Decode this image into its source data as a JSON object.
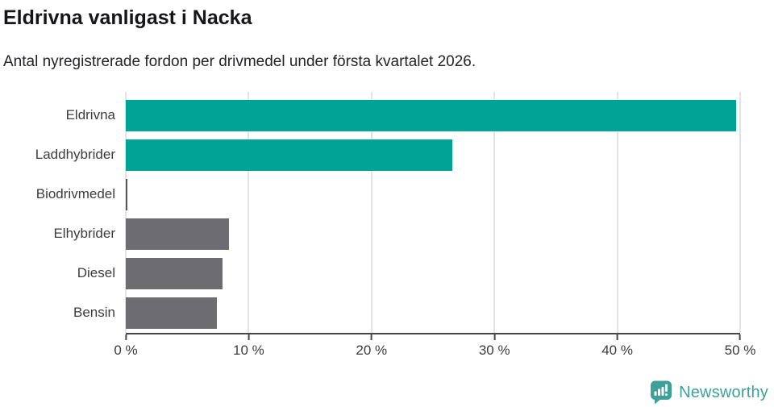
{
  "header": {
    "title": "Eldrivna vanligast i Nacka",
    "subtitle": "Antal nyregistrerade fordon per drivmedel under första kvartalet 2026."
  },
  "chart_data": {
    "type": "bar",
    "orientation": "horizontal",
    "title": "Eldrivna vanligast i Nacka",
    "subtitle": "Antal nyregistrerade fordon per drivmedel under första kvartalet 2026.",
    "categories": [
      "Eldrivna",
      "Laddhybrider",
      "Biodrivmedel",
      "Elhybrider",
      "Diesel",
      "Bensin"
    ],
    "values": [
      49.7,
      26.6,
      0.15,
      8.4,
      7.9,
      7.4
    ],
    "unit": "%",
    "xlim": [
      0,
      50
    ],
    "ticks": [
      {
        "value": 0,
        "label": "0 %"
      },
      {
        "value": 10,
        "label": "10 %"
      },
      {
        "value": 20,
        "label": "20 %"
      },
      {
        "value": 30,
        "label": "30 %"
      },
      {
        "value": 40,
        "label": "40 %"
      },
      {
        "value": 50,
        "label": "50 %"
      }
    ],
    "grid": "vertical",
    "legend": "none",
    "bar_colors": [
      "#00a396",
      "#00a396",
      "#56565c",
      "#6c6c72",
      "#6c6c72",
      "#6c6c72"
    ],
    "accent_colors": {
      "teal": "#00a396",
      "gray": "#6c6c72"
    }
  },
  "branding": {
    "logo_text": "Newsworthy",
    "logo_color": "#3fa09a"
  }
}
